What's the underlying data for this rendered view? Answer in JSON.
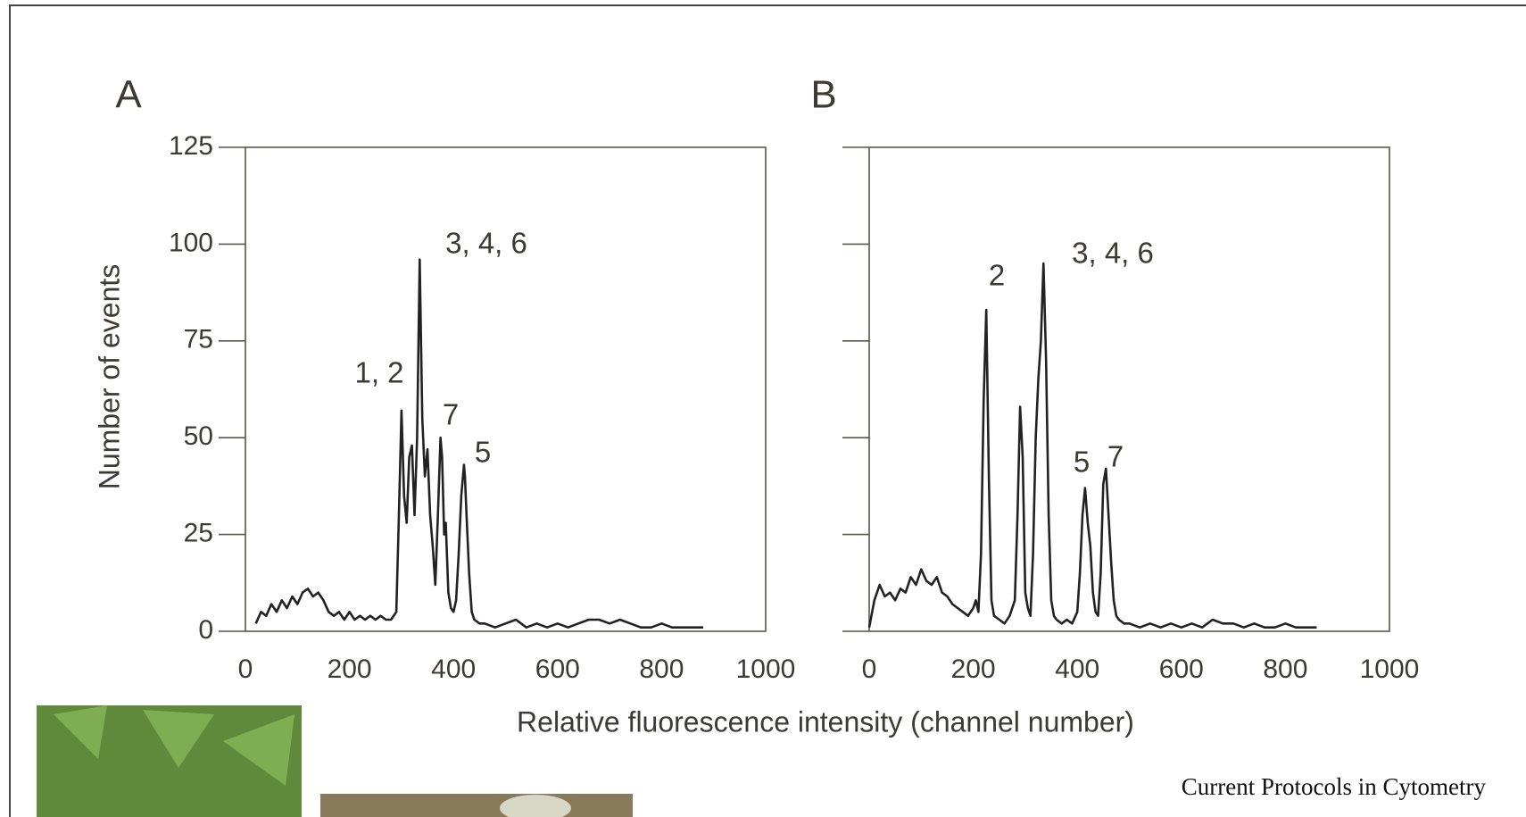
{
  "chart_data": [
    {
      "type": "line",
      "panel_label": "A",
      "ylabel": "Number of events",
      "x": [
        20,
        30,
        40,
        50,
        60,
        70,
        80,
        90,
        100,
        110,
        120,
        130,
        140,
        150,
        160,
        170,
        180,
        190,
        200,
        210,
        220,
        230,
        240,
        250,
        260,
        270,
        280,
        290,
        295,
        300,
        305,
        310,
        315,
        320,
        325,
        330,
        335,
        340,
        345,
        350,
        355,
        360,
        365,
        370,
        375,
        378,
        382,
        385,
        390,
        395,
        400,
        405,
        410,
        415,
        420,
        422,
        425,
        430,
        435,
        440,
        450,
        460,
        480,
        500,
        520,
        540,
        560,
        580,
        600,
        620,
        640,
        660,
        680,
        700,
        720,
        740,
        760,
        780,
        800,
        820,
        840,
        860,
        880
      ],
      "series": [
        {
          "color": "#222222",
          "values": [
            2,
            5,
            4,
            7,
            5,
            8,
            6,
            9,
            7,
            10,
            11,
            9,
            10,
            8,
            5,
            4,
            5,
            3,
            5,
            3,
            4,
            3,
            4,
            3,
            4,
            3,
            3,
            5,
            30,
            57,
            35,
            28,
            45,
            48,
            30,
            50,
            96,
            55,
            40,
            47,
            30,
            22,
            12,
            30,
            50,
            45,
            25,
            28,
            10,
            6,
            5,
            8,
            20,
            35,
            43,
            40,
            30,
            15,
            5,
            3,
            2,
            2,
            1,
            2,
            3,
            1,
            2,
            1,
            2,
            1,
            2,
            3,
            3,
            2,
            3,
            2,
            1,
            1,
            2,
            1,
            1,
            1,
            1
          ]
        }
      ],
      "annotations": [
        "1, 2",
        "3, 4, 6",
        "7",
        "5"
      ],
      "xlim": [
        0,
        1000
      ],
      "xticks": [
        0,
        200,
        400,
        600,
        800,
        1000
      ],
      "ylim": [
        0,
        125
      ],
      "yticks": [
        0,
        25,
        50,
        75,
        100,
        125
      ],
      "ytick_labels": true
    },
    {
      "type": "line",
      "panel_label": "B",
      "x": [
        0,
        10,
        20,
        30,
        40,
        50,
        60,
        70,
        80,
        90,
        100,
        110,
        120,
        130,
        140,
        150,
        160,
        170,
        180,
        190,
        200,
        205,
        210,
        215,
        220,
        225,
        230,
        235,
        240,
        250,
        260,
        270,
        280,
        285,
        290,
        295,
        300,
        305,
        310,
        315,
        320,
        325,
        330,
        335,
        340,
        345,
        350,
        355,
        360,
        370,
        380,
        390,
        400,
        405,
        410,
        415,
        420,
        425,
        430,
        435,
        440,
        445,
        450,
        455,
        460,
        465,
        470,
        475,
        480,
        490,
        500,
        520,
        540,
        560,
        580,
        600,
        620,
        640,
        660,
        680,
        700,
        720,
        740,
        760,
        780,
        800,
        820,
        840,
        860
      ],
      "series": [
        {
          "color": "#222222",
          "values": [
            1,
            8,
            12,
            9,
            10,
            8,
            11,
            10,
            14,
            12,
            16,
            13,
            12,
            14,
            10,
            9,
            7,
            6,
            5,
            4,
            6,
            8,
            5,
            20,
            60,
            83,
            40,
            8,
            4,
            3,
            2,
            4,
            8,
            30,
            58,
            45,
            10,
            6,
            4,
            20,
            50,
            65,
            75,
            95,
            70,
            30,
            8,
            4,
            3,
            2,
            3,
            2,
            5,
            15,
            30,
            37,
            28,
            22,
            10,
            5,
            4,
            15,
            38,
            42,
            30,
            18,
            8,
            4,
            3,
            2,
            2,
            1,
            2,
            1,
            2,
            1,
            2,
            1,
            3,
            2,
            2,
            1,
            2,
            1,
            1,
            2,
            1,
            1,
            1
          ]
        }
      ],
      "annotations": [
        "2",
        "3, 4, 6",
        "5",
        "7"
      ],
      "xlim": [
        0,
        1000
      ],
      "xticks": [
        0,
        200,
        400,
        600,
        800,
        1000
      ],
      "ylim": [
        0,
        125
      ],
      "yticks": [
        0,
        25,
        50,
        75,
        100,
        125
      ],
      "ytick_labels": false
    }
  ],
  "xlabel": "Relative fluorescence intensity (channel number)",
  "source": "Current Protocols in Cytometry"
}
